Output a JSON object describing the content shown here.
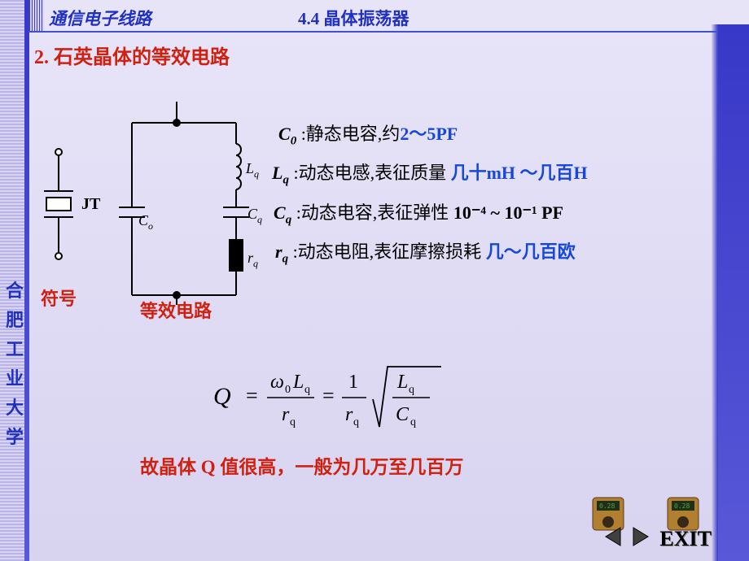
{
  "header": {
    "course": "通信电子线路",
    "chapter": "4.4  晶体振荡器"
  },
  "sidebar_vtext": "合肥工业大学",
  "section_title_num": "2.",
  "section_title_text": " 石英晶体的等效电路",
  "symbol_label": "符号",
  "equiv_label": "等效电路",
  "circuit": {
    "symbol_label": "JT",
    "C0_label": "C",
    "C0_sub": "o",
    "Lq_label": "L",
    "Lq_sub": "q",
    "Cq_label": "C",
    "Cq_sub": "q",
    "rq_label": "r",
    "rq_sub": "q"
  },
  "definitions": [
    {
      "sym": "C",
      "sub": "0",
      "txt": ":静态电容,约",
      "val": "2～5PF"
    },
    {
      "sym": "L",
      "sub": "q",
      "txt": ":动态电感,表征质量 ",
      "val": "几十mH ～几百H"
    },
    {
      "sym": "C",
      "sub": "q",
      "txt": ":动态电容,表征弹性 ",
      "val": "",
      "pow": "10⁻⁴ ~ 10⁻¹ PF"
    },
    {
      "sym": "r",
      "sub": "q",
      "txt": ":动态电阻,表征摩擦损耗  ",
      "val": "几～几百欧"
    }
  ],
  "formula": {
    "Q": "Q",
    "eq": "=",
    "omega0": "ω",
    "zero": "0",
    "Lq": "L",
    "rq": "r",
    "Cq": "C",
    "sub_q": "q",
    "frac1_num": "ω₀Lq",
    "one": "1"
  },
  "conclusion_pre": "故晶体 ",
  "conclusion_Q": "Q",
  "conclusion_post": " 值很高，一般为几万至几百万",
  "exit": "EXIT",
  "colors": {
    "blue": "#2030c0",
    "red": "#d02010",
    "valblue": "#1848d8",
    "bg_top": "#e8e4f8",
    "bg_bot": "#d8d4f0",
    "stroke": "#000000"
  }
}
